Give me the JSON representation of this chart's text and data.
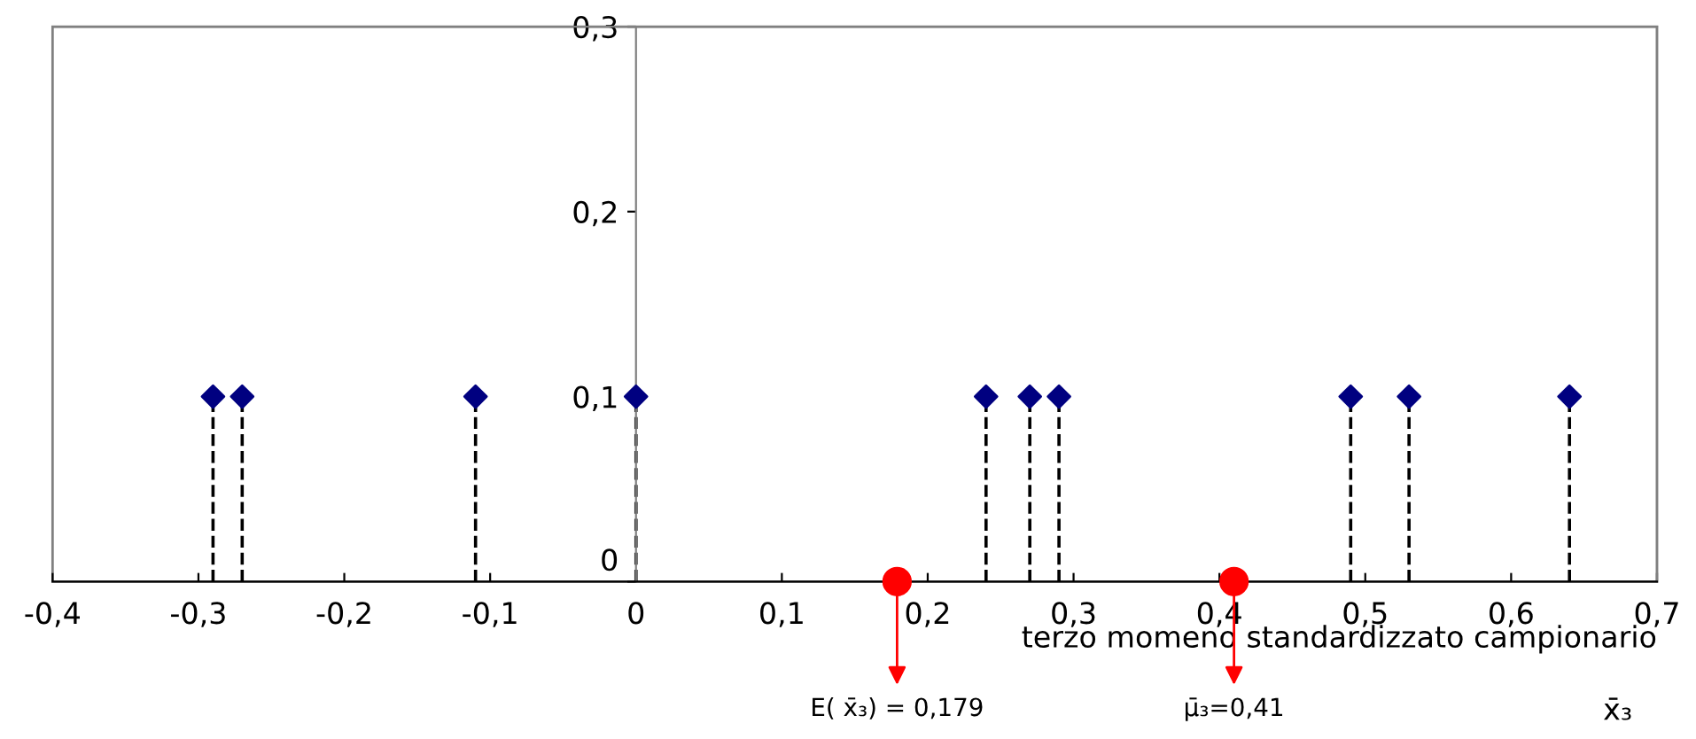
{
  "chart_data": {
    "type": "lollipop",
    "xlabel": "terzo momeno standardizzato campionario",
    "series": [
      {
        "color": "#000080",
        "marker": "diamond",
        "line_style": "dashed",
        "x": [
          -0.29,
          -0.27,
          -0.11,
          0,
          0.24,
          0.27,
          0.29,
          0.49,
          0.53,
          0.64
        ],
        "values": [
          0.1,
          0.1,
          0.1,
          0.1,
          0.1,
          0.1,
          0.1,
          0.1,
          0.1,
          0.1
        ]
      },
      {
        "type": "scatter",
        "color": "#ff0000",
        "marker": "circle",
        "x": [
          0.179,
          0.41
        ],
        "values": [
          0,
          0
        ]
      }
    ],
    "annotations": [
      {
        "text": "E( x̄₃) = 0,179",
        "x": 0.179,
        "y": 0
      },
      {
        "text": "μ̄₃=0,41",
        "x": 0.41,
        "y": 0
      },
      "x̄₃"
    ],
    "xlim": [
      -0.4,
      0.7
    ],
    "xticks": [
      {
        "value": -0.4,
        "label": "-0,4"
      },
      {
        "value": -0.3,
        "label": "-0,3"
      },
      {
        "value": -0.2,
        "label": "-0,2"
      },
      {
        "value": -0.1,
        "label": "-0,1"
      },
      0,
      {
        "value": 0.1,
        "label": "0,1"
      },
      {
        "value": 0.2,
        "label": "0,2"
      },
      {
        "value": 0.3,
        "label": "0,3"
      },
      {
        "value": 0.4,
        "label": "0,4"
      },
      {
        "value": 0.5,
        "label": "0,5"
      },
      {
        "value": 0.6,
        "label": "0,6"
      },
      {
        "value": 0.7,
        "label": "0,7"
      }
    ],
    "ylim": [
      0,
      0.3
    ],
    "yticks": [
      0,
      {
        "value": 0.1,
        "label": "0,1"
      },
      {
        "value": 0.2,
        "label": "0,2"
      },
      {
        "value": 0.3,
        "label": "0,3"
      }
    ],
    "grid": false,
    "legend": false
  }
}
